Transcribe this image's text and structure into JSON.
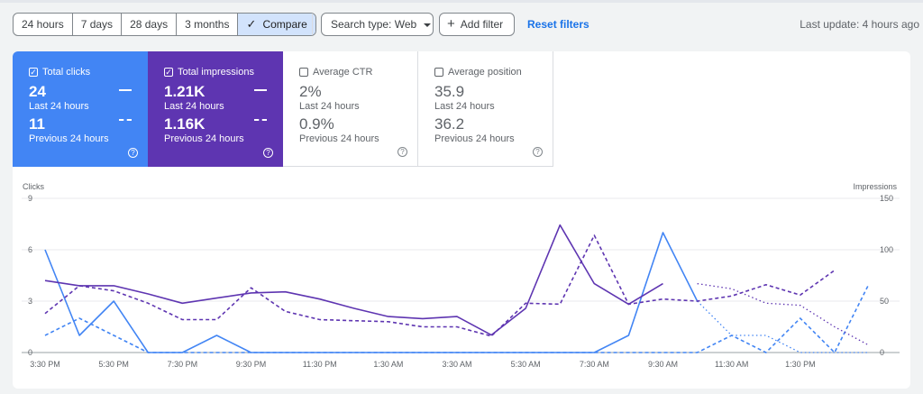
{
  "filters": {
    "date_range": [
      "24 hours",
      "7 days",
      "28 days",
      "3 months"
    ],
    "compare_label": "Compare",
    "search_type": "Search type: Web",
    "add_filter": "Add filter",
    "reset": "Reset filters",
    "last_update": "Last update: 4 hours ago"
  },
  "metrics": {
    "clicks": {
      "title": "Total clicks",
      "current": "24",
      "current_label": "Last 24 hours",
      "previous": "11",
      "previous_label": "Previous 24 hours",
      "checked": true,
      "color": "#4285f4"
    },
    "impressions": {
      "title": "Total impressions",
      "current": "1.21K",
      "current_label": "Last 24 hours",
      "previous": "1.16K",
      "previous_label": "Previous 24 hours",
      "checked": true,
      "color": "#5e35b1"
    },
    "ctr": {
      "title": "Average CTR",
      "current": "2%",
      "current_label": "Last 24 hours",
      "previous": "0.9%",
      "previous_label": "Previous 24 hours",
      "checked": false
    },
    "position": {
      "title": "Average position",
      "current": "35.9",
      "current_label": "Last 24 hours",
      "previous": "36.2",
      "previous_label": "Previous 24 hours",
      "checked": false
    }
  },
  "chart_data": {
    "type": "line",
    "ylabel_left": "Clicks",
    "ylabel_right": "Impressions",
    "yleft_ticks": [
      0,
      3,
      6,
      9
    ],
    "yright_ticks": [
      0,
      50,
      100,
      150
    ],
    "ylim_left": [
      0,
      9
    ],
    "ylim_right": [
      0,
      150
    ],
    "x_tick_labels": [
      "3:30 PM",
      "5:30 PM",
      "7:30 PM",
      "9:30 PM",
      "11:30 PM",
      "1:30 AM",
      "3:30 AM",
      "5:30 AM",
      "7:30 AM",
      "9:30 AM",
      "11:30 AM",
      "1:30 PM"
    ],
    "x_tick_index": [
      0,
      2,
      4,
      6,
      8,
      10,
      12,
      14,
      16,
      18,
      20,
      22
    ],
    "grid": true,
    "series": [
      {
        "name": "Clicks",
        "axis": "left",
        "style": "solid",
        "color": "#4285f4",
        "values": [
          6,
          1,
          3,
          0,
          0,
          1,
          0,
          0,
          0,
          0,
          0,
          0,
          0,
          0,
          0,
          0,
          0,
          1,
          7,
          3,
          null,
          null,
          null,
          null,
          null
        ]
      },
      {
        "name": "Clicks",
        "axis": "left",
        "style": "dotted",
        "color": "#4285f4",
        "values": [
          null,
          null,
          null,
          null,
          null,
          null,
          null,
          null,
          null,
          null,
          null,
          null,
          null,
          null,
          null,
          null,
          null,
          null,
          null,
          3,
          1,
          1,
          0,
          0,
          0
        ]
      },
      {
        "name": "Clicks",
        "axis": "left",
        "style": "dashed",
        "color": "#4285f4",
        "values": [
          1,
          2,
          1,
          0,
          0,
          0,
          0,
          0,
          0,
          0,
          0,
          0,
          0,
          0,
          0,
          0,
          0,
          0,
          0,
          0,
          1,
          0,
          2,
          0,
          4
        ]
      },
      {
        "name": "Impressions",
        "axis": "right",
        "style": "solid",
        "color": "#5e35b1",
        "values": [
          70,
          65,
          65,
          57,
          48,
          53,
          58,
          59,
          52,
          43,
          35,
          33,
          35,
          17,
          43,
          124,
          67,
          47,
          67,
          null,
          null,
          null,
          null,
          null,
          null
        ]
      },
      {
        "name": "Impressions",
        "axis": "right",
        "style": "dotted",
        "color": "#5e35b1",
        "values": [
          null,
          null,
          null,
          null,
          null,
          null,
          null,
          null,
          null,
          null,
          null,
          null,
          null,
          null,
          null,
          null,
          null,
          null,
          null,
          67,
          62,
          48,
          46,
          25,
          7
        ]
      },
      {
        "name": "Impressions",
        "axis": "right",
        "style": "dashed",
        "color": "#5e35b1",
        "values": [
          38,
          65,
          60,
          48,
          32,
          32,
          63,
          40,
          32,
          31,
          30,
          25,
          25,
          16,
          48,
          47,
          114,
          47,
          52,
          50,
          55,
          66,
          56,
          80,
          null
        ]
      }
    ]
  }
}
